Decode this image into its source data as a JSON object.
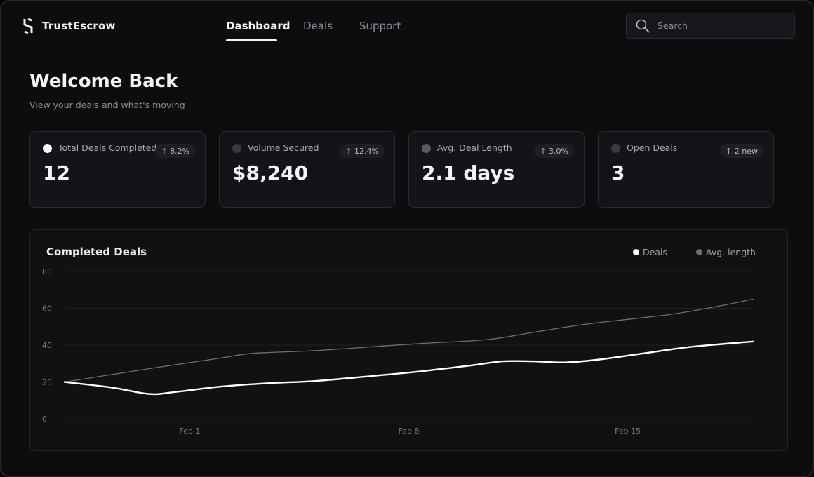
{
  "app": {
    "name": "TrustEscrow",
    "logo_icon": "escrow-s-logo-icon"
  },
  "nav": {
    "items": [
      {
        "label": "Dashboard",
        "active": true
      },
      {
        "label": "Deals",
        "active": false
      },
      {
        "label": "Support",
        "active": false
      }
    ]
  },
  "search": {
    "placeholder": "Search",
    "icon": "search-icon"
  },
  "welcome": {
    "title": "Welcome Back",
    "subtitle": "View your deals and what's moving"
  },
  "stats": [
    {
      "label": "Total Deals Completed",
      "value": "12",
      "badge": "↑ 8.2%",
      "dot_color": "#ffffff"
    },
    {
      "label": "Volume Secured",
      "value": "$8,240",
      "badge": "↑ 12.4%",
      "dot_color": "#3a3a40"
    },
    {
      "label": "Avg. Deal Length",
      "value": "2.1 days",
      "badge": "↑ 3.0%",
      "dot_color": "#5a5a60"
    },
    {
      "label": "Open Deals",
      "value": "3",
      "badge": "↑ 2 new",
      "dot_color": "#3a3a40"
    }
  ],
  "chart_data": {
    "type": "line",
    "title": "Completed Deals",
    "legend_position": "top-right",
    "grid": true,
    "xlabel": "",
    "ylabel": "",
    "x_ticks": [
      {
        "label": "Feb 1",
        "x": 1
      },
      {
        "label": "Feb 8",
        "x": 8
      },
      {
        "label": "Feb 15",
        "x": 15
      }
    ],
    "x_range": [
      -3,
      19
    ],
    "ylim": [
      0,
      80
    ],
    "y_ticks": [
      0,
      20,
      40,
      60,
      80
    ],
    "series": [
      {
        "name": "Deals",
        "color": "#ffffff",
        "width": 2.4,
        "points": [
          [
            -3,
            20
          ],
          [
            -1.5,
            17
          ],
          [
            -0.3,
            13.5
          ],
          [
            0.5,
            14.5
          ],
          [
            2,
            17.5
          ],
          [
            3.5,
            19.3
          ],
          [
            5,
            20.5
          ],
          [
            7,
            23.5
          ],
          [
            8.5,
            26
          ],
          [
            10,
            29
          ],
          [
            11,
            31.2
          ],
          [
            12,
            31.2
          ],
          [
            13,
            30.6
          ],
          [
            14,
            32
          ],
          [
            15.5,
            35.5
          ],
          [
            17,
            39
          ],
          [
            19,
            42
          ]
        ]
      },
      {
        "name": "Avg. length",
        "color": "#6e6e75",
        "width": 1.3,
        "points": [
          [
            -3,
            20
          ],
          [
            -1.5,
            24
          ],
          [
            0,
            28
          ],
          [
            2,
            33
          ],
          [
            3,
            35.5
          ],
          [
            5,
            37
          ],
          [
            7,
            39.3
          ],
          [
            8.5,
            41
          ],
          [
            10.5,
            43
          ],
          [
            12,
            47
          ],
          [
            13.5,
            51
          ],
          [
            15,
            54
          ],
          [
            16.5,
            57
          ],
          [
            18,
            61.5
          ],
          [
            19,
            65
          ]
        ]
      }
    ]
  }
}
